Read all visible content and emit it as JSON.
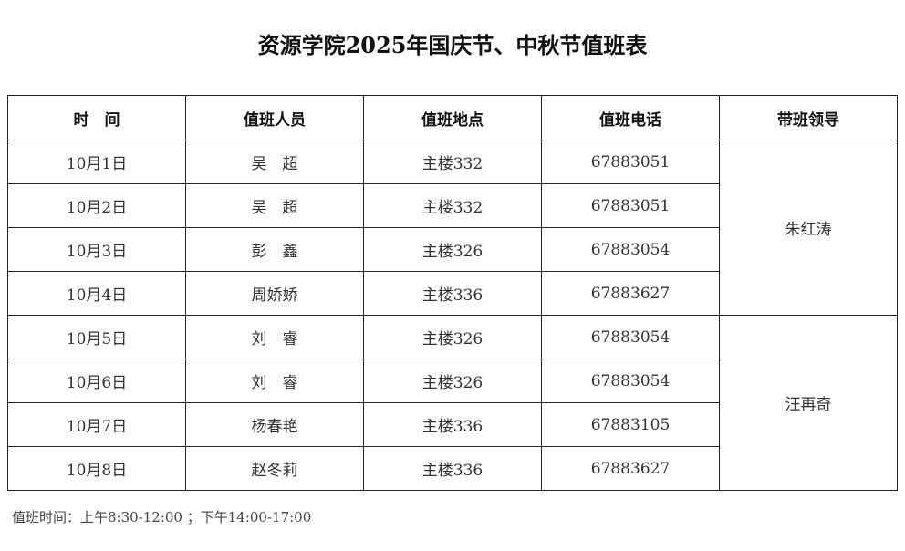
{
  "title": "资源学院2025年国庆节、中秋节值班表",
  "headers": [
    "时　间",
    "值班人员",
    "值班地点",
    "值班电话",
    "带班领导"
  ],
  "rows": [
    {
      "date": "10月1日",
      "person": "吴　超",
      "place": "主楼332",
      "phone": "67883051"
    },
    {
      "date": "10月2日",
      "person": "吴　超",
      "place": "主楼332",
      "phone": "67883051"
    },
    {
      "date": "10月3日",
      "person": "彭　鑫",
      "place": "主楼326",
      "phone": "67883054"
    },
    {
      "date": "10月4日",
      "person": "周娇娇",
      "place": "主楼336",
      "phone": "67883627"
    },
    {
      "date": "10月5日",
      "person": "刘　睿",
      "place": "主楼326",
      "phone": "67883054"
    },
    {
      "date": "10月6日",
      "person": "刘　睿",
      "place": "主楼326",
      "phone": "67883054"
    },
    {
      "date": "10月7日",
      "person": "杨春艳",
      "place": "主楼336",
      "phone": "67883105"
    },
    {
      "date": "10月8日",
      "person": "赵冬莉",
      "place": "主楼336",
      "phone": "67883627"
    }
  ],
  "leaders": [
    "朱红涛",
    "汪再奇"
  ],
  "footer": "值班时间：上午8:30-12:00 ；下午14:00-17:00"
}
